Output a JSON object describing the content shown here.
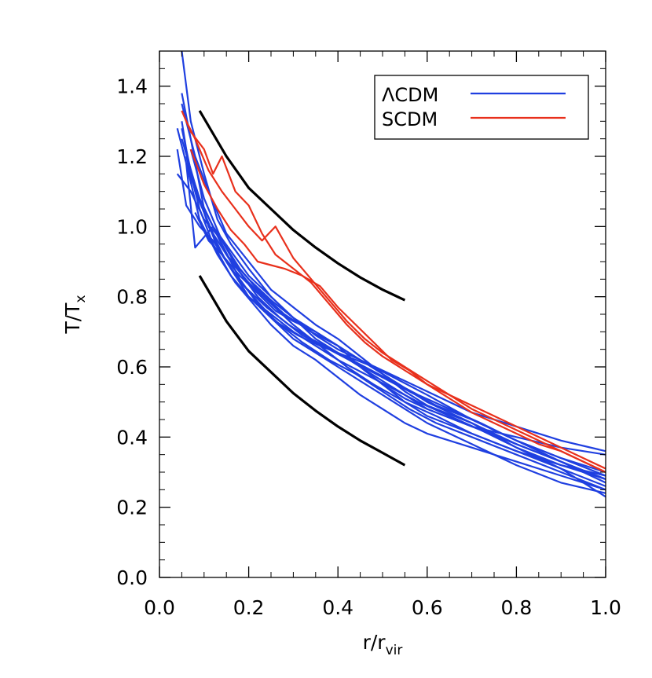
{
  "chart_data": {
    "type": "line",
    "xlim": [
      0.0,
      1.0
    ],
    "ylim": [
      0.0,
      1.5
    ],
    "xticks": [
      "0.0",
      "0.2",
      "0.4",
      "0.6",
      "0.8",
      "1.0"
    ],
    "yticks": [
      "0.0",
      "0.2",
      "0.4",
      "0.6",
      "0.8",
      "1.0",
      "1.2",
      "1.4"
    ],
    "xlabel": {
      "main": "r/r",
      "sub": "vir"
    },
    "ylabel": {
      "main": "T/T",
      "sub": "x"
    },
    "grid": false,
    "legend": {
      "placement": "top-right",
      "entries": [
        {
          "label": "ΛCDM",
          "color": "#1f3fe0"
        },
        {
          "label": "SCDM",
          "color": "#e8301c"
        }
      ]
    },
    "bounds": {
      "color": "#000000",
      "upper": {
        "x": [
          0.09,
          0.15,
          0.2,
          0.25,
          0.3,
          0.35,
          0.4,
          0.45,
          0.5,
          0.55
        ],
        "y": [
          1.33,
          1.2,
          1.11,
          1.05,
          0.99,
          0.94,
          0.895,
          0.855,
          0.82,
          0.79
        ]
      },
      "lower": {
        "x": [
          0.09,
          0.15,
          0.2,
          0.25,
          0.3,
          0.35,
          0.4,
          0.45,
          0.5,
          0.55
        ],
        "y": [
          0.86,
          0.73,
          0.645,
          0.585,
          0.525,
          0.475,
          0.43,
          0.39,
          0.355,
          0.32
        ]
      }
    },
    "series": [
      {
        "color": "#1f3fe0",
        "x": [
          0.05,
          0.07,
          0.1,
          0.13,
          0.16,
          0.2,
          0.25,
          0.3,
          0.35,
          0.4,
          0.45,
          0.5,
          0.55,
          0.6,
          0.7,
          0.8,
          0.9,
          1.0
        ],
        "y": [
          1.5,
          1.3,
          1.15,
          1.02,
          0.95,
          0.88,
          0.8,
          0.74,
          0.68,
          0.64,
          0.6,
          0.56,
          0.52,
          0.48,
          0.43,
          0.4,
          0.37,
          0.35
        ]
      },
      {
        "color": "#1f3fe0",
        "x": [
          0.04,
          0.06,
          0.09,
          0.12,
          0.15,
          0.2,
          0.25,
          0.3,
          0.35,
          0.4,
          0.45,
          0.5,
          0.55,
          0.6,
          0.7,
          0.8,
          0.9,
          1.0
        ],
        "y": [
          1.28,
          1.18,
          1.08,
          1.0,
          0.92,
          0.85,
          0.79,
          0.74,
          0.69,
          0.65,
          0.62,
          0.59,
          0.56,
          0.53,
          0.47,
          0.43,
          0.39,
          0.36
        ]
      },
      {
        "color": "#1f3fe0",
        "x": [
          0.04,
          0.07,
          0.1,
          0.14,
          0.18,
          0.22,
          0.28,
          0.34,
          0.4,
          0.45,
          0.5,
          0.55,
          0.6,
          0.7,
          0.8,
          0.9,
          1.0
        ],
        "y": [
          1.15,
          1.1,
          1.02,
          0.96,
          0.88,
          0.82,
          0.75,
          0.7,
          0.66,
          0.6,
          0.55,
          0.5,
          0.46,
          0.41,
          0.36,
          0.32,
          0.29
        ]
      },
      {
        "color": "#1f3fe0",
        "x": [
          0.05,
          0.08,
          0.11,
          0.15,
          0.2,
          0.25,
          0.3,
          0.35,
          0.4,
          0.45,
          0.5,
          0.55,
          0.6,
          0.7,
          0.8,
          0.9,
          1.0
        ],
        "y": [
          1.35,
          1.2,
          1.1,
          0.98,
          0.9,
          0.82,
          0.77,
          0.72,
          0.68,
          0.63,
          0.58,
          0.53,
          0.49,
          0.44,
          0.38,
          0.33,
          0.28
        ]
      },
      {
        "color": "#1f3fe0",
        "x": [
          0.06,
          0.08,
          0.12,
          0.16,
          0.2,
          0.25,
          0.3,
          0.35,
          0.4,
          0.45,
          0.5,
          0.55,
          0.6,
          0.7,
          0.8,
          0.9,
          1.0
        ],
        "y": [
          1.18,
          0.94,
          1.0,
          0.93,
          0.86,
          0.8,
          0.74,
          0.7,
          0.66,
          0.62,
          0.58,
          0.54,
          0.5,
          0.44,
          0.37,
          0.31,
          0.26
        ]
      },
      {
        "color": "#1f3fe0",
        "x": [
          0.04,
          0.06,
          0.09,
          0.12,
          0.16,
          0.2,
          0.25,
          0.3,
          0.35,
          0.4,
          0.45,
          0.5,
          0.55,
          0.6,
          0.7,
          0.8,
          0.9,
          1.0
        ],
        "y": [
          1.22,
          1.06,
          1.0,
          0.96,
          0.88,
          0.8,
          0.74,
          0.68,
          0.64,
          0.6,
          0.56,
          0.52,
          0.48,
          0.44,
          0.38,
          0.32,
          0.27,
          0.24
        ]
      },
      {
        "color": "#1f3fe0",
        "x": [
          0.05,
          0.07,
          0.1,
          0.14,
          0.18,
          0.22,
          0.27,
          0.32,
          0.38,
          0.44,
          0.5,
          0.56,
          0.62,
          0.7,
          0.8,
          0.9,
          1.0
        ],
        "y": [
          1.38,
          1.25,
          1.05,
          0.95,
          0.85,
          0.78,
          0.72,
          0.67,
          0.62,
          0.58,
          0.53,
          0.48,
          0.44,
          0.4,
          0.35,
          0.3,
          0.25
        ]
      },
      {
        "color": "#1f3fe0",
        "x": [
          0.05,
          0.08,
          0.12,
          0.16,
          0.2,
          0.25,
          0.3,
          0.36,
          0.42,
          0.48,
          0.55,
          0.62,
          0.7,
          0.8,
          0.9,
          1.0
        ],
        "y": [
          1.28,
          1.1,
          0.98,
          0.9,
          0.84,
          0.78,
          0.72,
          0.66,
          0.6,
          0.55,
          0.5,
          0.46,
          0.41,
          0.36,
          0.31,
          0.23
        ]
      },
      {
        "color": "#1f3fe0",
        "x": [
          0.06,
          0.09,
          0.12,
          0.16,
          0.2,
          0.25,
          0.3,
          0.35,
          0.4,
          0.46,
          0.52,
          0.58,
          0.65,
          0.72,
          0.8,
          0.9,
          1.0
        ],
        "y": [
          1.2,
          1.05,
          0.95,
          0.86,
          0.8,
          0.75,
          0.7,
          0.66,
          0.62,
          0.58,
          0.54,
          0.5,
          0.46,
          0.42,
          0.37,
          0.32,
          0.28
        ]
      },
      {
        "color": "#1f3fe0",
        "x": [
          0.05,
          0.07,
          0.1,
          0.13,
          0.17,
          0.21,
          0.26,
          0.31,
          0.36,
          0.42,
          0.48,
          0.54,
          0.6,
          0.7,
          0.8,
          0.9,
          1.0
        ],
        "y": [
          1.3,
          1.14,
          1.04,
          0.94,
          0.86,
          0.8,
          0.73,
          0.69,
          0.66,
          0.63,
          0.6,
          0.56,
          0.52,
          0.45,
          0.39,
          0.34,
          0.3
        ]
      },
      {
        "color": "#1f3fe0",
        "x": [
          0.07,
          0.1,
          0.14,
          0.18,
          0.22,
          0.27,
          0.32,
          0.38,
          0.44,
          0.5,
          0.56,
          0.62,
          0.7,
          0.8,
          0.9,
          1.0
        ],
        "y": [
          1.22,
          1.08,
          0.96,
          0.87,
          0.8,
          0.74,
          0.69,
          0.65,
          0.61,
          0.57,
          0.53,
          0.49,
          0.45,
          0.39,
          0.33,
          0.27
        ]
      },
      {
        "color": "#1f3fe0",
        "x": [
          0.05,
          0.08,
          0.11,
          0.15,
          0.19,
          0.24,
          0.29,
          0.34,
          0.4,
          0.46,
          0.52,
          0.58,
          0.65,
          0.72,
          0.8,
          0.9,
          1.0
        ],
        "y": [
          1.25,
          1.12,
          1.0,
          0.9,
          0.83,
          0.77,
          0.72,
          0.68,
          0.64,
          0.6,
          0.56,
          0.52,
          0.48,
          0.44,
          0.39,
          0.34,
          0.29
        ]
      },
      {
        "color": "#1f3fe0",
        "x": [
          0.08,
          0.11,
          0.14,
          0.18,
          0.22,
          0.26,
          0.3,
          0.35,
          0.4,
          0.45,
          0.5,
          0.55,
          0.6,
          0.7,
          0.8,
          0.9,
          1.0
        ],
        "y": [
          1.04,
          0.96,
          0.92,
          0.86,
          0.81,
          0.76,
          0.73,
          0.7,
          0.66,
          0.6,
          0.55,
          0.51,
          0.48,
          0.43,
          0.38,
          0.33,
          0.28
        ]
      },
      {
        "color": "#1f3fe0",
        "x": [
          0.06,
          0.09,
          0.13,
          0.17,
          0.21,
          0.25,
          0.3,
          0.35,
          0.4,
          0.45,
          0.5,
          0.55,
          0.6,
          0.7,
          0.8,
          0.9,
          1.0
        ],
        "y": [
          1.18,
          1.02,
          0.92,
          0.84,
          0.78,
          0.72,
          0.66,
          0.62,
          0.57,
          0.52,
          0.48,
          0.44,
          0.41,
          0.37,
          0.33,
          0.29,
          0.25
        ]
      },
      {
        "color": "#e8301c",
        "x": [
          0.05,
          0.07,
          0.1,
          0.12,
          0.14,
          0.17,
          0.2,
          0.23,
          0.26,
          0.3,
          0.34,
          0.38,
          0.42,
          0.46,
          0.5,
          0.55,
          0.6,
          0.65,
          0.7,
          0.75,
          0.8,
          0.85,
          0.9,
          0.95,
          1.0
        ],
        "y": [
          1.33,
          1.27,
          1.22,
          1.15,
          1.2,
          1.1,
          1.06,
          0.98,
          0.92,
          0.88,
          0.84,
          0.78,
          0.72,
          0.67,
          0.63,
          0.59,
          0.55,
          0.51,
          0.47,
          0.44,
          0.41,
          0.38,
          0.36,
          0.33,
          0.3
        ]
      },
      {
        "color": "#e8301c",
        "x": [
          0.06,
          0.08,
          0.11,
          0.14,
          0.17,
          0.2,
          0.23,
          0.26,
          0.3,
          0.34,
          0.38,
          0.42,
          0.46,
          0.5,
          0.55,
          0.6,
          0.65,
          0.7,
          0.75,
          0.8,
          0.85,
          0.9,
          0.95,
          1.0
        ],
        "y": [
          1.3,
          1.25,
          1.16,
          1.1,
          1.05,
          1.0,
          0.96,
          1.0,
          0.91,
          0.85,
          0.79,
          0.73,
          0.68,
          0.64,
          0.6,
          0.56,
          0.52,
          0.49,
          0.46,
          0.43,
          0.4,
          0.37,
          0.34,
          0.31
        ]
      },
      {
        "color": "#e8301c",
        "x": [
          0.07,
          0.1,
          0.13,
          0.16,
          0.19,
          0.22,
          0.25,
          0.28,
          0.32,
          0.36,
          0.4,
          0.44,
          0.48,
          0.52,
          0.56,
          0.6,
          0.65,
          0.7,
          0.75,
          0.8,
          0.85,
          0.9,
          0.95,
          1.0
        ],
        "y": [
          1.22,
          1.12,
          1.05,
          0.99,
          0.95,
          0.9,
          0.89,
          0.88,
          0.86,
          0.83,
          0.77,
          0.72,
          0.67,
          0.62,
          0.59,
          0.55,
          0.52,
          0.48,
          0.45,
          0.42,
          0.39,
          0.36,
          0.33,
          0.3
        ]
      }
    ]
  }
}
